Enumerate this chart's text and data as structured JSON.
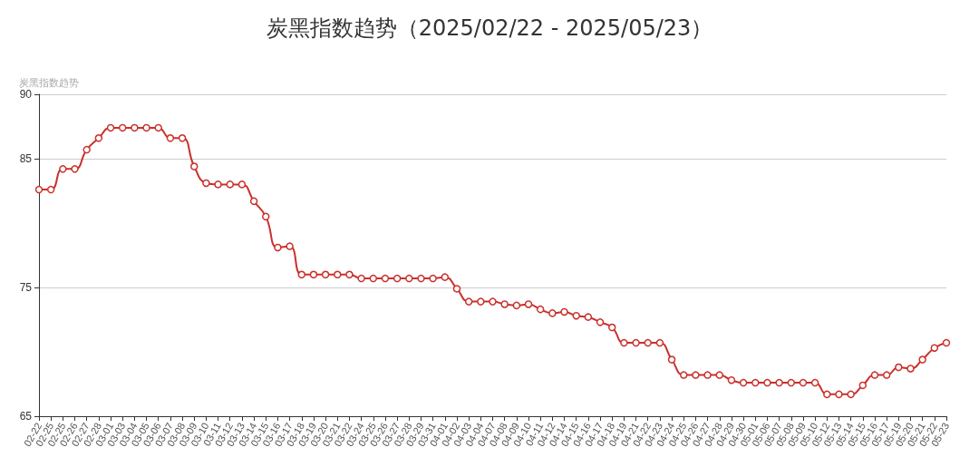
{
  "chart_data": {
    "type": "line",
    "title": "炭黑指数趋势（2025/02/22 - 2025/05/23）",
    "ylabel": "炭黑指数趋势",
    "categories": [
      "02-22",
      "02-25",
      "02-25",
      "02-26",
      "02-27",
      "02-28",
      "03-01",
      "03-03",
      "03-04",
      "03-05",
      "03-06",
      "03-07",
      "03-08",
      "03-09",
      "03-10",
      "03-11",
      "03-12",
      "03-13",
      "03-14",
      "03-15",
      "03-16",
      "03-17",
      "03-18",
      "03-19",
      "03-20",
      "03-21",
      "03-22",
      "03-24",
      "03-25",
      "03-26",
      "03-27",
      "03-28",
      "03-29",
      "03-31",
      "04-01",
      "04-02",
      "04-03",
      "04-04",
      "04-07",
      "04-08",
      "04-09",
      "04-10",
      "04-11",
      "04-12",
      "04-14",
      "04-15",
      "04-16",
      "04-17",
      "04-18",
      "04-19",
      "04-21",
      "04-22",
      "04-23",
      "04-24",
      "04-25",
      "04-26",
      "04-27",
      "04-28",
      "04-29",
      "04-30",
      "05-01",
      "05-06",
      "05-07",
      "05-08",
      "05-09",
      "05-10",
      "05-12",
      "05-13",
      "05-14",
      "05-15",
      "05-16",
      "05-17",
      "05-19",
      "05-20",
      "05-21",
      "05-22",
      "05-23"
    ],
    "series": [
      {
        "color": "#c9302c",
        "values": [
          82.6,
          82.6,
          84.2,
          84.2,
          85.7,
          86.6,
          87.4,
          87.4,
          87.4,
          87.4,
          87.4,
          86.6,
          86.6,
          84.4,
          83.1,
          83.0,
          83.0,
          83.0,
          81.7,
          80.5,
          78.1,
          78.2,
          76.0,
          76.0,
          76.0,
          76.0,
          76.0,
          75.7,
          75.7,
          75.7,
          75.7,
          75.7,
          75.7,
          75.7,
          75.8,
          74.9,
          73.9,
          73.9,
          73.9,
          73.7,
          73.6,
          73.7,
          73.3,
          73.0,
          73.1,
          72.8,
          72.7,
          72.3,
          71.9,
          70.7,
          70.7,
          70.7,
          70.7,
          69.4,
          68.2,
          68.2,
          68.2,
          68.2,
          67.8,
          67.6,
          67.6,
          67.6,
          67.6,
          67.6,
          67.6,
          67.6,
          66.7,
          66.7,
          66.7,
          67.4,
          68.2,
          68.2,
          68.8,
          68.7,
          69.4,
          70.3,
          70.7
        ]
      }
    ],
    "ylim": [
      65,
      90
    ],
    "yticks": [
      65,
      75,
      85,
      90
    ],
    "grid": "y",
    "marker": "circle",
    "line_style": "solid"
  }
}
